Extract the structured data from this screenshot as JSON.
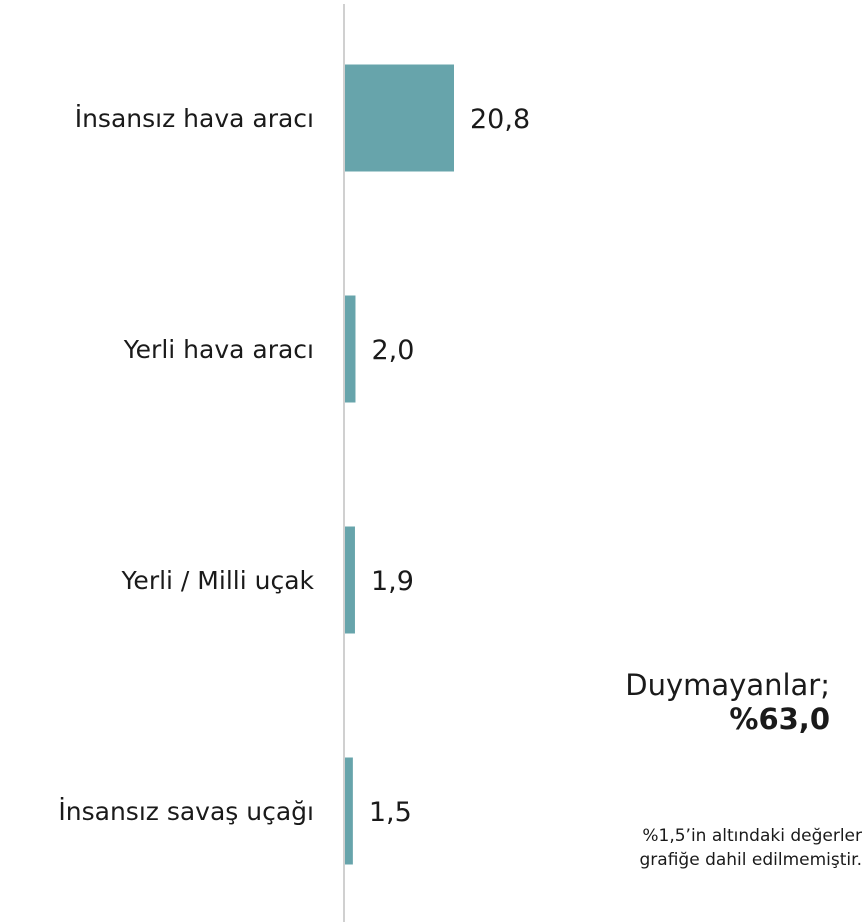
{
  "chart_data": {
    "type": "bar",
    "orientation": "horizontal",
    "categories": [
      "İnsansız hava aracı",
      "Yerli hava aracı",
      "Yerli / Milli uçak",
      "İnsansız savaş uçağı"
    ],
    "values": [
      20.8,
      2.0,
      1.9,
      1.5
    ],
    "value_labels": [
      "20,8",
      "2,0",
      "1,9",
      "1,5"
    ],
    "bar_color": "#67a4ab",
    "axis_color": "#d0d0d0",
    "xlim": [
      0,
      100
    ],
    "grid": false,
    "legend": "none"
  },
  "annotation": {
    "title": "Duymayanlar;",
    "value": "%63,0"
  },
  "footnote": {
    "line1": "%1,5’in altındaki değerler",
    "line2": "grafiğe dahil edilmemiştir."
  }
}
